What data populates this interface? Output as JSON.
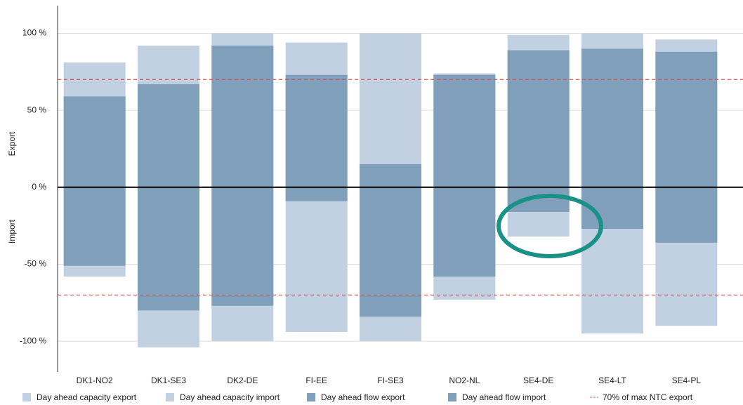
{
  "chart_data": {
    "type": "bar",
    "y_axis_labels": [
      "Export",
      "Import"
    ],
    "categories": [
      "DK1-NO2",
      "DK1-SE3",
      "DK2-DE",
      "FI-EE",
      "FI-SE3",
      "NO2-NL",
      "SE4-DE",
      "SE4-LT",
      "SE4-PL"
    ],
    "series": [
      {
        "name": "Day ahead capacity export",
        "color": "#c1d1e1",
        "values": [
          81,
          92,
          100,
          94,
          100,
          74,
          99,
          100,
          96
        ]
      },
      {
        "name": "Day ahead capacity import",
        "color": "#c1d1e1",
        "values": [
          -58,
          -104,
          -100,
          -94,
          -100,
          -73,
          -32,
          -95,
          -90
        ]
      },
      {
        "name": "Day ahead flow export",
        "color": "#7f9fba",
        "values": [
          59,
          67,
          92,
          73,
          15,
          73,
          89,
          90,
          88
        ]
      },
      {
        "name": "Day ahead flow import",
        "color": "#7f9fba",
        "values": [
          -51,
          -80,
          -77,
          -9,
          -84,
          -58,
          -16,
          -27,
          -36
        ]
      }
    ],
    "reference_line": {
      "name": "70% of max NTC export",
      "color": "#d9534f",
      "values": [
        70,
        -70
      ]
    },
    "ylim": [
      -120,
      118
    ],
    "yticks": [
      {
        "value": -100,
        "label": "-100 %"
      },
      {
        "value": -50,
        "label": "-50 %"
      },
      {
        "value": 0,
        "label": "0 %"
      },
      {
        "value": 50,
        "label": "50 %"
      },
      {
        "value": 100,
        "label": "100 %"
      }
    ],
    "grid": true
  }
}
